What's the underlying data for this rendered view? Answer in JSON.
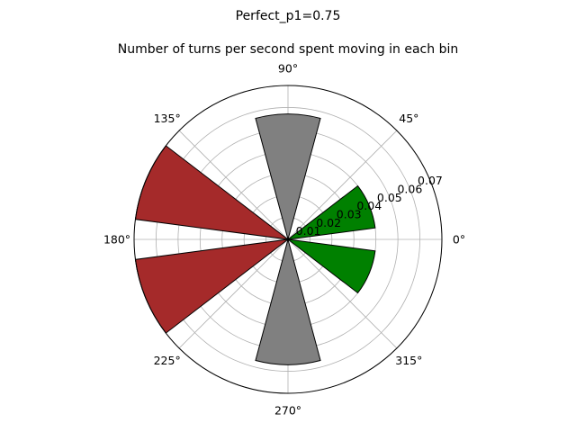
{
  "chart_data": {
    "type": "polar-bar",
    "suptitle": "Perfect_p1=0.75",
    "title": "Number of turns per second spent moving in each bin",
    "rmax": 0.07,
    "radial_ticks": [
      0.01,
      0.02,
      0.03,
      0.04,
      0.05,
      0.06,
      0.07
    ],
    "radial_tick_labels": [
      "0.01",
      "0.02",
      "0.03",
      "0.04",
      "0.05",
      "0.06",
      "0.07"
    ],
    "angular_ticks": [
      0,
      45,
      90,
      135,
      180,
      225,
      270,
      315
    ],
    "angular_tick_labels": [
      "0°",
      "45°",
      "90°",
      "135°",
      "180°",
      "225°",
      "270°",
      "315°"
    ],
    "grid": true,
    "bars": [
      {
        "center_deg": 22.5,
        "width_deg": 30,
        "value": 0.04,
        "color": "#008000"
      },
      {
        "center_deg": 90,
        "width_deg": 30,
        "value": 0.057,
        "color": "#808080"
      },
      {
        "center_deg": 157.5,
        "width_deg": 30,
        "value": 0.07,
        "color": "#a52a2a"
      },
      {
        "center_deg": 202.5,
        "width_deg": 30,
        "value": 0.07,
        "color": "#a52a2a"
      },
      {
        "center_deg": 270,
        "width_deg": 30,
        "value": 0.057,
        "color": "#808080"
      },
      {
        "center_deg": 337.5,
        "width_deg": 30,
        "value": 0.04,
        "color": "#008000"
      }
    ]
  }
}
